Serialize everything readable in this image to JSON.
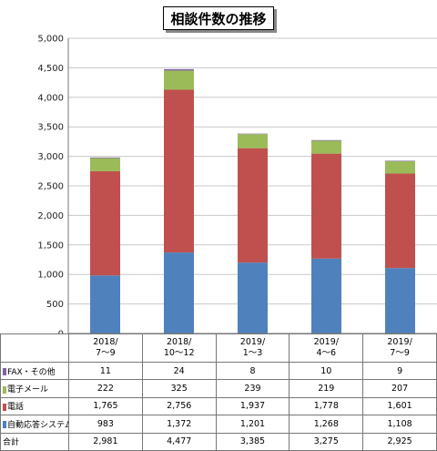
{
  "chart_data": {
    "type": "bar",
    "stacked": true,
    "title": "相談件数の推移",
    "categories": [
      "2018/\n7～9",
      "2018/\n10～12",
      "2019/\n1～3",
      "2019/\n4～6",
      "2019/\n7～9"
    ],
    "ylim": [
      0,
      5000
    ],
    "yticks": [
      "0",
      "500",
      "1,000",
      "1,500",
      "2,000",
      "2,500",
      "3,000",
      "3,500",
      "4,000",
      "4,500",
      "5,000"
    ],
    "grid": true,
    "series": [
      {
        "name": "自動応答システム",
        "color": "#4f81bd",
        "values": [
          983,
          1372,
          1201,
          1268,
          1108
        ],
        "labels": [
          "983",
          "1,372",
          "1,201",
          "1,268",
          "1,108"
        ]
      },
      {
        "name": "電話",
        "color": "#c0504d",
        "values": [
          1765,
          2756,
          1937,
          1778,
          1601
        ],
        "labels": [
          "1,765",
          "2,756",
          "1,937",
          "1,778",
          "1,601"
        ]
      },
      {
        "name": "電子メール",
        "color": "#9bbb59",
        "values": [
          222,
          325,
          239,
          219,
          207
        ],
        "labels": [
          "222",
          "325",
          "239",
          "219",
          "207"
        ]
      },
      {
        "name": "FAX・その他",
        "color": "#8064a2",
        "values": [
          11,
          24,
          8,
          10,
          9
        ],
        "labels": [
          "11",
          "24",
          "8",
          "10",
          "9"
        ]
      }
    ],
    "total": {
      "name": "合計",
      "labels": [
        "2,981",
        "4,477",
        "3,385",
        "3,275",
        "2,925"
      ]
    }
  }
}
